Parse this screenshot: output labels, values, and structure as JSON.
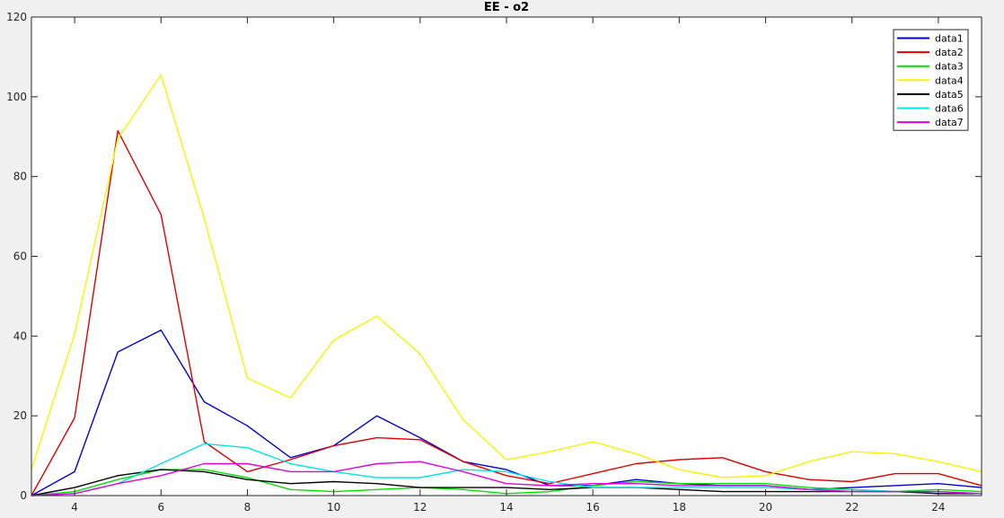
{
  "chart_data": {
    "type": "line",
    "title": "EE - o2",
    "xlabel": "",
    "ylabel": "",
    "xlim": [
      3,
      25
    ],
    "ylim": [
      0,
      120
    ],
    "xticks": [
      4,
      6,
      8,
      10,
      12,
      14,
      16,
      18,
      20,
      22,
      24
    ],
    "yticks": [
      0,
      20,
      40,
      60,
      80,
      100,
      120
    ],
    "grid": false,
    "legend_position": "top-right",
    "x": [
      3,
      4,
      5,
      6,
      7,
      8,
      9,
      10,
      11,
      12,
      13,
      14,
      15,
      16,
      17,
      18,
      19,
      20,
      21,
      22,
      23,
      24,
      25
    ],
    "series": [
      {
        "name": "data1",
        "color": "#0000d0",
        "values": [
          0,
          6,
          36,
          41.5,
          23.5,
          17.5,
          9.5,
          12.5,
          20,
          14.5,
          8.5,
          6.5,
          2.5,
          2.5,
          4,
          3,
          2.5,
          2.5,
          1.5,
          2,
          2.5,
          3,
          2
        ]
      },
      {
        "name": "data2",
        "color": "#e00000",
        "values": [
          0,
          19.5,
          91.5,
          70.5,
          13.5,
          6,
          9,
          12.5,
          14.5,
          14,
          8.5,
          5,
          3,
          5.5,
          8,
          9,
          9.5,
          6,
          4,
          3.5,
          5.5,
          5.5,
          2.5
        ]
      },
      {
        "name": "data3",
        "color": "#00e000",
        "values": [
          0,
          1,
          4,
          6.5,
          6.5,
          4.5,
          1.5,
          1,
          1.5,
          2,
          1.5,
          0.5,
          1,
          2.5,
          3.5,
          3,
          3,
          3,
          2,
          1.5,
          1,
          1.5,
          1
        ]
      },
      {
        "name": "data4",
        "color": "#f5f500",
        "values": [
          6.5,
          40.5,
          89.5,
          105.5,
          69.5,
          29.5,
          24.5,
          39,
          45,
          35.5,
          19,
          9,
          11,
          13.5,
          10.5,
          6.5,
          4.5,
          5,
          8.5,
          11,
          10.5,
          8.5,
          6
        ]
      },
      {
        "name": "data5",
        "color": "#000000",
        "values": [
          0,
          2,
          5,
          6.5,
          6,
          4,
          3,
          3.5,
          3,
          2,
          2,
          2,
          1.5,
          2,
          2,
          1.5,
          1,
          1,
          1,
          1,
          1,
          0.5,
          0.5
        ]
      },
      {
        "name": "data6",
        "color": "#00e5e5",
        "values": [
          0,
          0.5,
          3,
          8,
          13,
          12,
          8,
          6,
          4.5,
          4.5,
          6.5,
          6,
          3.5,
          2,
          2,
          2,
          2,
          2,
          1.5,
          1.5,
          1,
          1,
          0.5
        ]
      },
      {
        "name": "data7",
        "color": "#e000e0",
        "values": [
          0,
          0.5,
          3,
          5,
          8,
          8,
          6,
          6,
          8,
          8.5,
          6,
          3,
          2.5,
          3,
          3,
          2.5,
          2.5,
          2.5,
          1.5,
          1,
          1,
          1,
          0.5
        ]
      }
    ]
  }
}
